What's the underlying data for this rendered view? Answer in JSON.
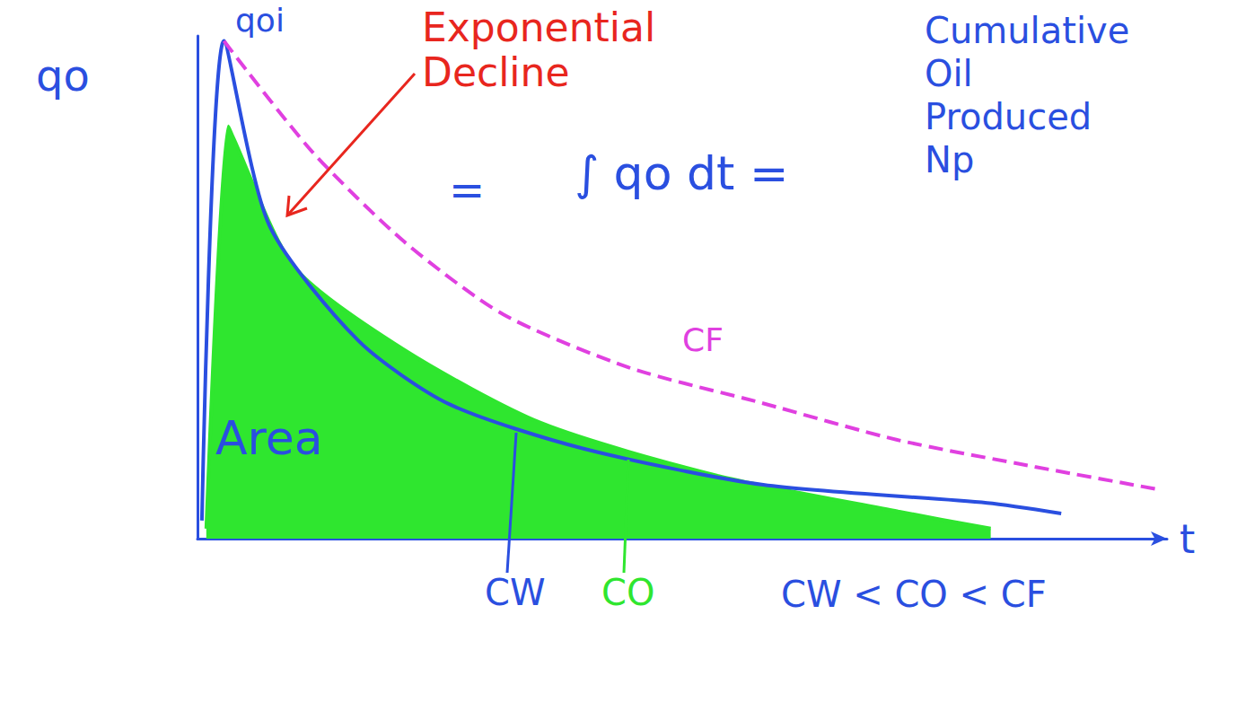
{
  "chart_data": {
    "type": "line",
    "x_label": "t",
    "y_label": "qo",
    "xlim": [
      0,
      110
    ],
    "ylim": [
      0,
      100
    ],
    "grid": false,
    "tick_labels": false,
    "annotations": [
      {
        "text": "qoi",
        "color": "#2a4fe0"
      },
      {
        "text": "Exponential Decline",
        "color": "#e8261e"
      },
      {
        "text": "=",
        "color": "#2a4fe0"
      },
      {
        "text": "∫ qo dt =",
        "color": "#2a4fe0"
      },
      {
        "text": "Cumulative Oil Produced Np",
        "color": "#2a4fe0"
      },
      {
        "text": "Area",
        "color": "#2a4fe0"
      },
      {
        "text": "CW < CO < CF",
        "color": "#2a4fe0"
      }
    ],
    "series": [
      {
        "name": "CO",
        "type": "area",
        "color": "#2fe62f",
        "line_style": "solid",
        "x": [
          1,
          3.5,
          4,
          11,
          23.5,
          39,
          59,
          79.5,
          90
        ],
        "values": [
          2,
          82,
          80,
          54,
          37.5,
          23,
          12.5,
          5.4,
          2
        ]
      },
      {
        "name": "CW",
        "type": "line",
        "color": "#2a4fe0",
        "line_style": "solid",
        "x": [
          0.5,
          3,
          8.1,
          18.3,
          28.5,
          43.8,
          64.2,
          89.6,
          98
        ],
        "values": [
          3.6,
          99,
          62.5,
          39.3,
          26.8,
          17.9,
          10.7,
          7.1,
          5
        ]
      },
      {
        "name": "CF",
        "type": "line",
        "color": "#e040e0",
        "line_style": "dashed",
        "x": [
          3,
          13,
          23.5,
          34.7,
          49,
          64,
          79.5,
          95,
          109
        ],
        "values": [
          99,
          77,
          59,
          44.6,
          34,
          27,
          19.6,
          14.3,
          9.8
        ]
      }
    ]
  }
}
